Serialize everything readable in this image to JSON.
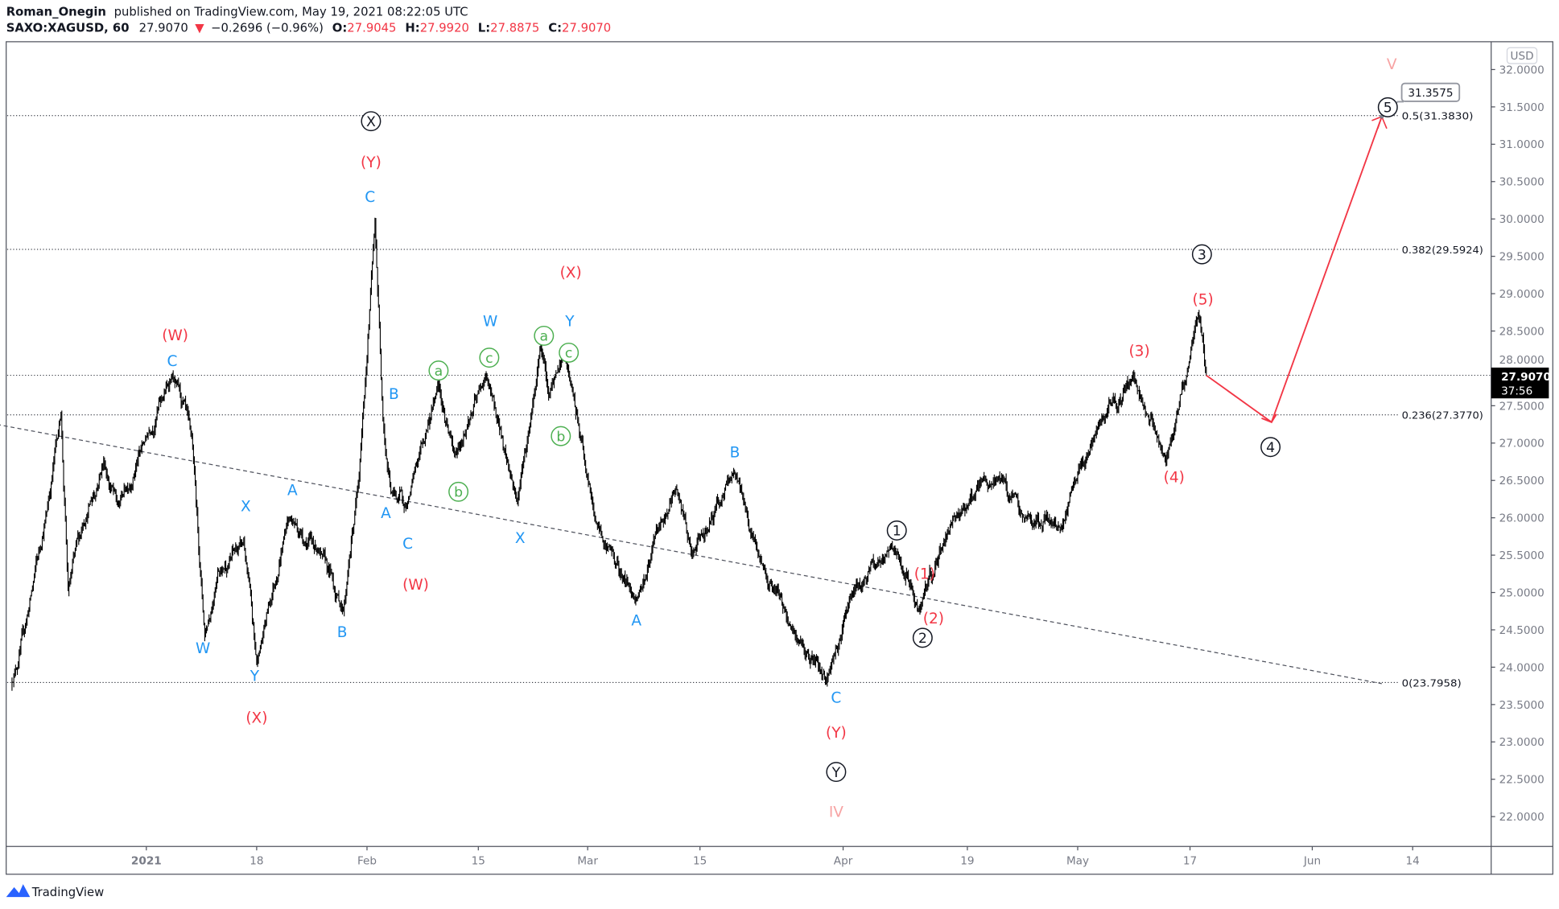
{
  "header": {
    "author": "Roman_Onegin",
    "published": "published on TradingView.com, May 19, 2021 08:22:05 UTC",
    "symbol": "SAXO:XAGUSD, 60",
    "last": "27.9070",
    "change": "−0.2696 (−0.96%)",
    "o_label": "O:",
    "o": "27.9045",
    "h_label": "H:",
    "h": "27.9920",
    "l_label": "L:",
    "l": "27.8875",
    "c_label": "C:",
    "c": "27.9070"
  },
  "footer": {
    "brand": "TradingView"
  },
  "colors": {
    "up_red": "#f23645",
    "wave_blue": "#2196f3",
    "wave_red": "#f23645",
    "wave_green": "#4caf50",
    "wave_pink": "#f7a3a3",
    "text": "#131722"
  },
  "chart_data": {
    "type": "candlestick",
    "title": "SAXO:XAGUSD, 60",
    "currency": "USD",
    "ylim": [
      21.6,
      32.2
    ],
    "y_ticks": [
      "32.0000",
      "31.5000",
      "31.0000",
      "30.5000",
      "30.0000",
      "29.5000",
      "29.0000",
      "28.5000",
      "28.0000",
      "27.5000",
      "27.0000",
      "26.5000",
      "26.0000",
      "25.5000",
      "25.0000",
      "24.5000",
      "24.0000",
      "23.5000",
      "23.0000",
      "22.5000",
      "22.0000"
    ],
    "x_ticks": [
      {
        "label": "2021",
        "date": "2021-01-01"
      },
      {
        "label": "18",
        "date": "2021-01-18"
      },
      {
        "label": "Feb",
        "date": "2021-02-01"
      },
      {
        "label": "15",
        "date": "2021-02-15"
      },
      {
        "label": "Mar",
        "date": "2021-03-01"
      },
      {
        "label": "15",
        "date": "2021-03-15"
      },
      {
        "label": "Apr",
        "date": "2021-04-01"
      },
      {
        "label": "19",
        "date": "2021-04-19"
      },
      {
        "label": "May",
        "date": "2021-05-03"
      },
      {
        "label": "17",
        "date": "2021-05-17"
      },
      {
        "label": "Jun",
        "date": "2021-06-01"
      },
      {
        "label": "14",
        "date": "2021-06-14"
      }
    ],
    "price_path_pivots": [
      [
        "2020-12-13",
        23.76
      ],
      [
        "2020-12-15",
        24.55
      ],
      [
        "2020-12-18",
        26.08
      ],
      [
        "2020-12-20",
        27.41
      ],
      [
        "2020-12-21",
        25.02
      ],
      [
        "2020-12-23",
        25.88
      ],
      [
        "2020-12-26",
        26.75
      ],
      [
        "2020-12-28",
        26.15
      ],
      [
        "2021-01-01",
        27.08
      ],
      [
        "2021-01-05",
        27.9
      ],
      [
        "2021-01-08",
        27.08
      ],
      [
        "2021-01-10",
        24.42
      ],
      [
        "2021-01-12",
        25.28
      ],
      [
        "2021-01-16",
        25.68
      ],
      [
        "2021-01-18",
        24.05
      ],
      [
        "2021-01-22",
        26.01
      ],
      [
        "2021-01-26",
        25.55
      ],
      [
        "2021-01-29",
        24.75
      ],
      [
        "2021-01-31",
        26.55
      ],
      [
        "2021-02-02",
        29.94
      ],
      [
        "2021-02-03",
        27.35
      ],
      [
        "2021-02-04",
        26.35
      ],
      [
        "2021-02-06",
        26.15
      ],
      [
        "2021-02-10",
        27.81
      ],
      [
        "2021-02-12",
        26.81
      ],
      [
        "2021-02-16",
        27.9
      ],
      [
        "2021-02-20",
        26.22
      ],
      [
        "2021-02-23",
        28.34
      ],
      [
        "2021-02-24",
        27.61
      ],
      [
        "2021-02-26",
        28.21
      ],
      [
        "2021-03-02",
        25.95
      ],
      [
        "2021-03-07",
        24.89
      ],
      [
        "2021-03-12",
        26.42
      ],
      [
        "2021-03-14",
        25.48
      ],
      [
        "2021-03-19",
        26.62
      ],
      [
        "2021-03-22",
        25.48
      ],
      [
        "2021-03-26",
        24.49
      ],
      [
        "2021-03-30",
        23.82
      ],
      [
        "2021-04-02",
        24.95
      ],
      [
        "2021-04-08",
        25.62
      ],
      [
        "2021-04-12",
        24.75
      ],
      [
        "2021-04-17",
        26.01
      ],
      [
        "2021-04-23",
        26.55
      ],
      [
        "2021-04-26",
        26.01
      ],
      [
        "2021-05-01",
        25.88
      ],
      [
        "2021-05-05",
        27.08
      ],
      [
        "2021-05-10",
        27.9
      ],
      [
        "2021-05-14",
        26.75
      ],
      [
        "2021-05-18",
        28.74
      ],
      [
        "2021-05-19",
        27.907
      ]
    ],
    "projection": [
      [
        "2021-05-19",
        27.907
      ],
      [
        "2021-05-27",
        27.28
      ],
      [
        "2021-06-10",
        31.37
      ]
    ],
    "projection_target_label": "31.3575",
    "last_price_label": "27.9070",
    "countdown": "37:56",
    "fib_levels": [
      {
        "ratio": "0.5",
        "price": 31.383,
        "label": "0.5(31.3830)"
      },
      {
        "ratio": "0.382",
        "price": 29.5924,
        "label": "0.382(29.5924)"
      },
      {
        "ratio": "0.236",
        "price": 27.377,
        "label": "0.236(27.3770)"
      },
      {
        "ratio": "0",
        "price": 23.7958,
        "label": "0(23.7958)"
      }
    ],
    "trendline": [
      [
        "2020-12-11",
        27.25
      ],
      [
        "2021-06-10",
        23.78
      ]
    ],
    "wave_labels": [
      {
        "text": "X",
        "style": "circle-black"
      },
      {
        "text": "3",
        "style": "circle-black"
      },
      {
        "text": "5",
        "style": "circle-black"
      },
      {
        "text": "1",
        "style": "circle-black"
      },
      {
        "text": "2",
        "style": "circle-black"
      },
      {
        "text": "Y",
        "style": "circle-black"
      },
      {
        "text": "4",
        "style": "circle-black"
      },
      {
        "text": "(Y)",
        "style": "red"
      },
      {
        "text": "(W)",
        "style": "red"
      },
      {
        "text": "(X)",
        "style": "red"
      },
      {
        "text": "(W)",
        "style": "red"
      },
      {
        "text": "(X)",
        "style": "red"
      },
      {
        "text": "(Y)",
        "style": "red"
      },
      {
        "text": "(3)",
        "style": "red"
      },
      {
        "text": "(5)",
        "style": "red"
      },
      {
        "text": "(4)",
        "style": "red"
      },
      {
        "text": "(1)",
        "style": "red"
      },
      {
        "text": "(2)",
        "style": "red"
      },
      {
        "text": "IV",
        "style": "pink"
      },
      {
        "text": "V",
        "style": "pink"
      },
      {
        "text": "C",
        "style": "blue"
      },
      {
        "text": "C",
        "style": "blue"
      },
      {
        "text": "W",
        "style": "blue"
      },
      {
        "text": "Y",
        "style": "blue"
      },
      {
        "text": "B",
        "style": "blue"
      },
      {
        "text": "A",
        "style": "blue"
      },
      {
        "text": "C",
        "style": "blue"
      },
      {
        "text": "X",
        "style": "blue"
      },
      {
        "text": "A",
        "style": "blue"
      },
      {
        "text": "B",
        "style": "blue"
      },
      {
        "text": "W",
        "style": "blue"
      },
      {
        "text": "Y",
        "style": "blue"
      },
      {
        "text": "X",
        "style": "blue"
      },
      {
        "text": "B",
        "style": "blue"
      },
      {
        "text": "A",
        "style": "blue"
      },
      {
        "text": "C",
        "style": "blue"
      },
      {
        "text": "a",
        "style": "circle-green"
      },
      {
        "text": "c",
        "style": "circle-green"
      },
      {
        "text": "a",
        "style": "circle-green"
      },
      {
        "text": "c",
        "style": "circle-green"
      },
      {
        "text": "b",
        "style": "circle-green"
      },
      {
        "text": "b",
        "style": "circle-green"
      }
    ]
  }
}
